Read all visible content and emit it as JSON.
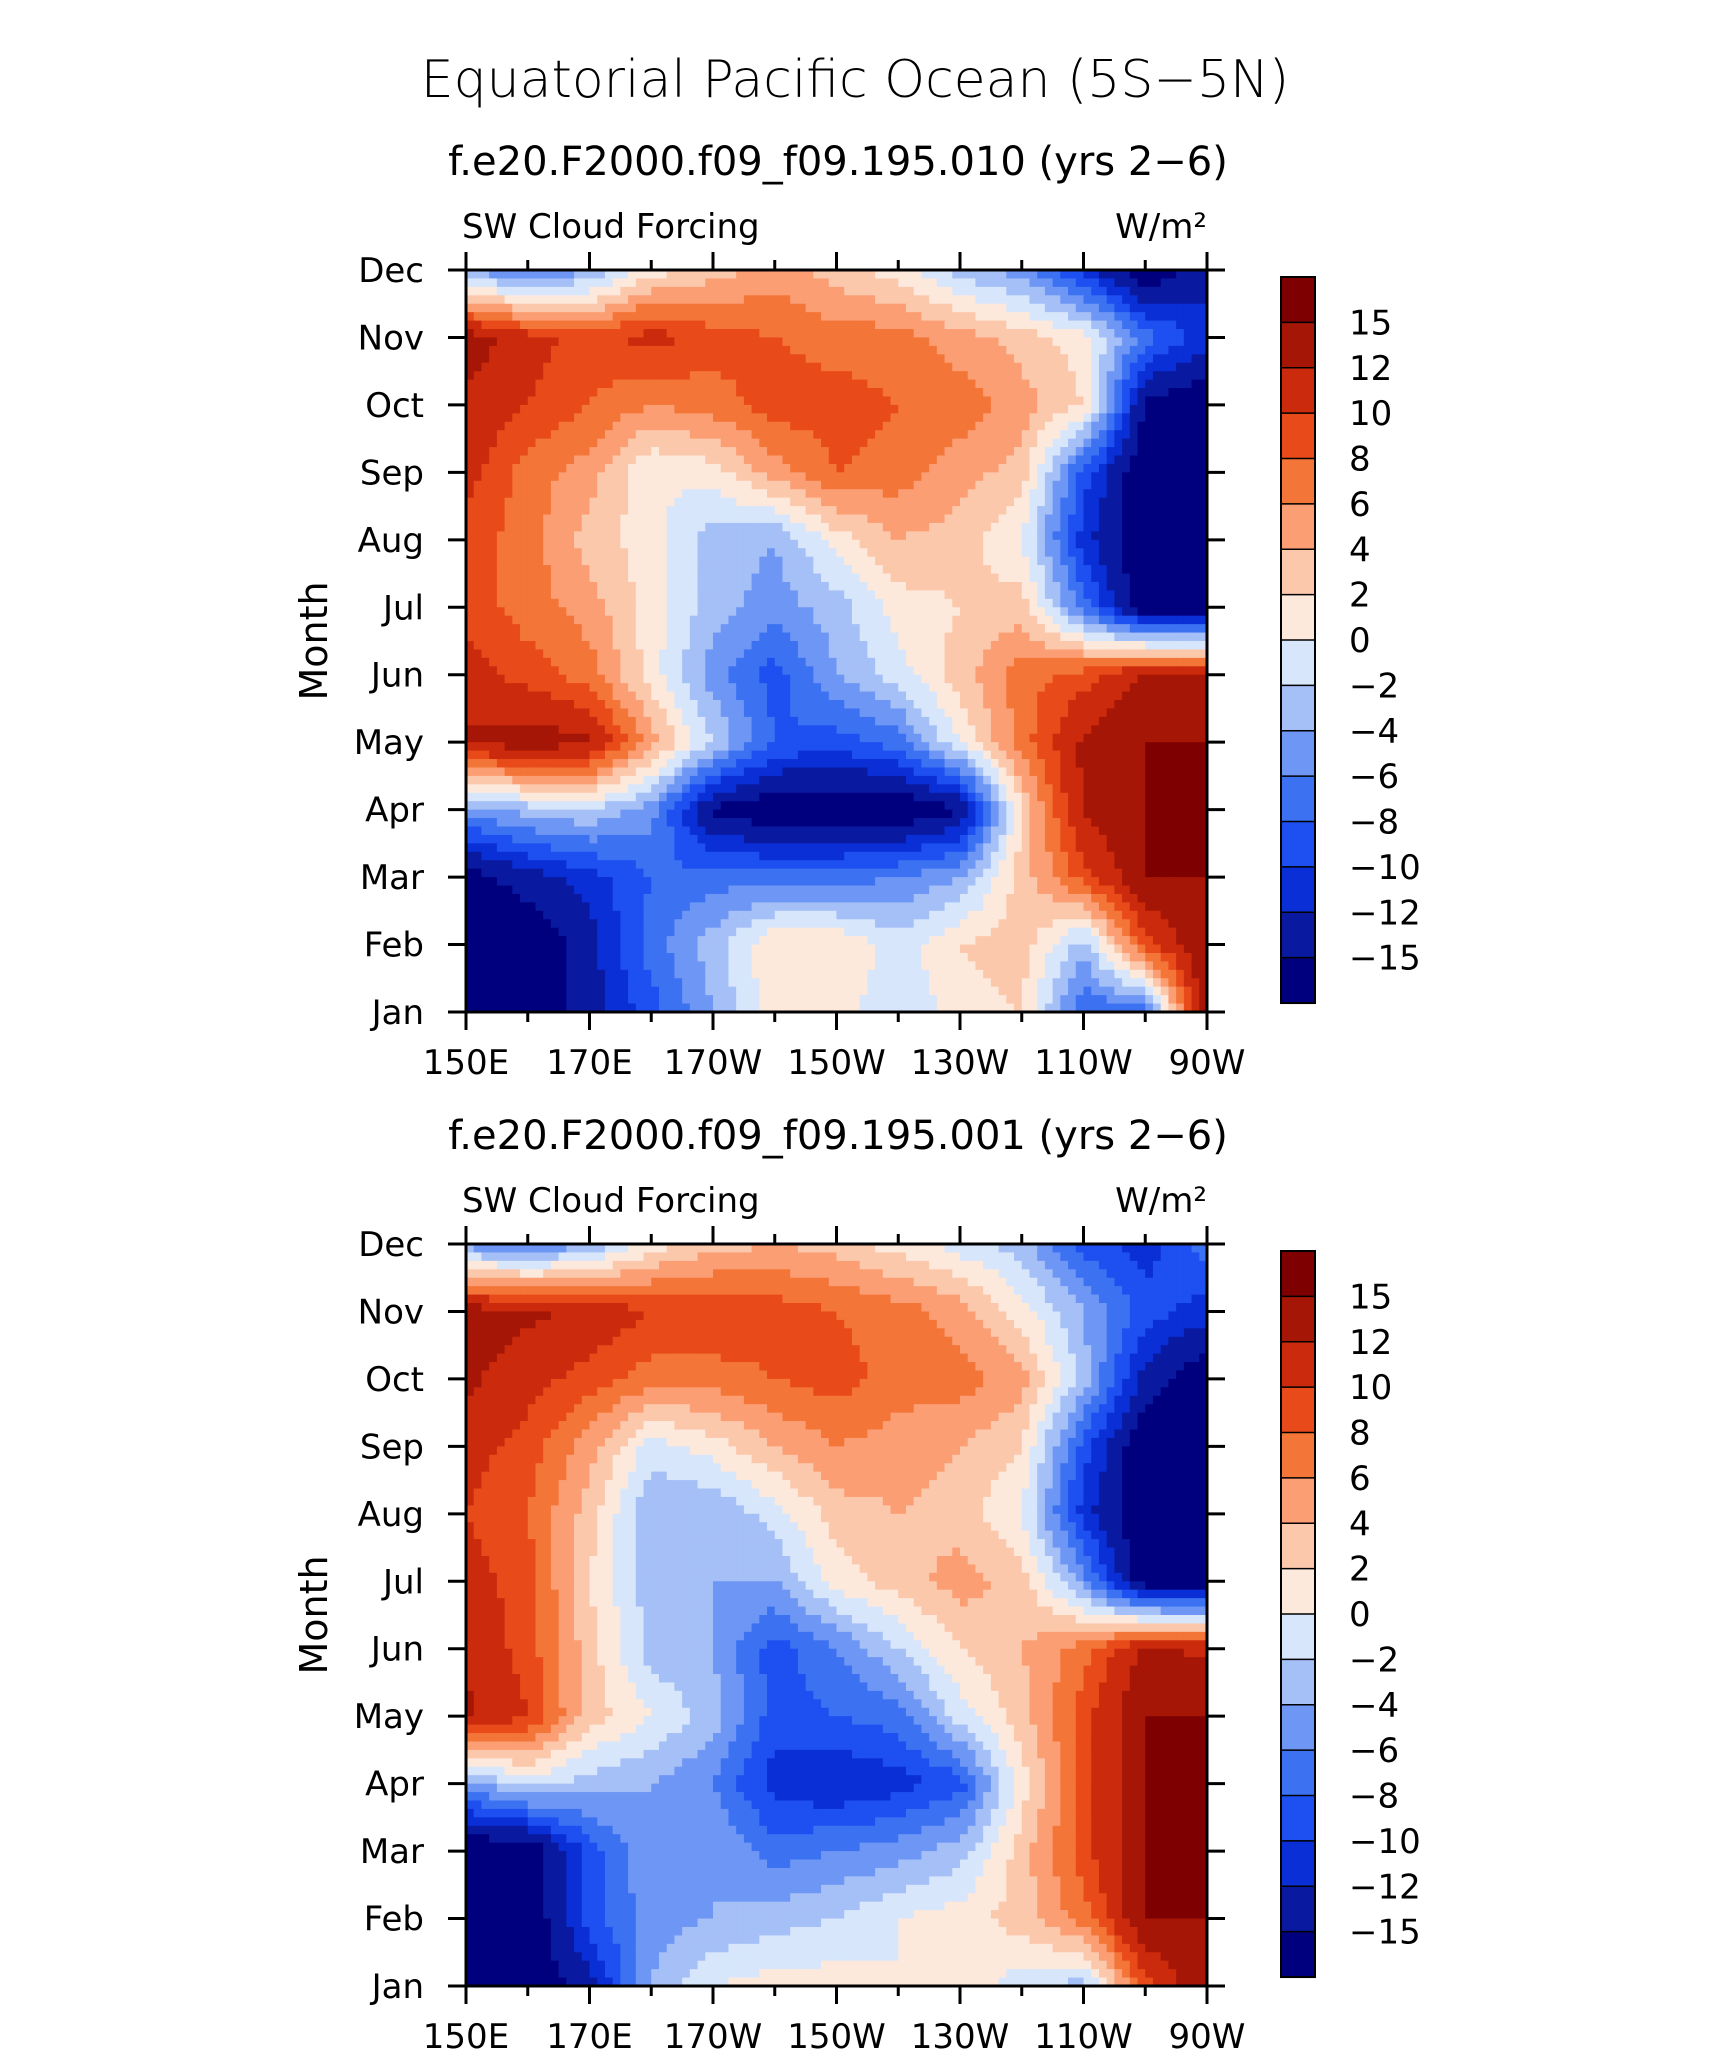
{
  "figure": {
    "title": "Equatorial Pacific Ocean (5S−5N)"
  },
  "colors": {
    "levels": [
      "#00007f",
      "#0a1aa0",
      "#0a2fd6",
      "#1e4ff0",
      "#3c72f2",
      "#6e96f4",
      "#a5bff7",
      "#d7e6fb",
      "#fde9dc",
      "#fcc8ac",
      "#fb9e74",
      "#f47538",
      "#e84a1a",
      "#cc2a0c",
      "#a51607",
      "#7f0000"
    ]
  },
  "chart_data": [
    {
      "type": "heatmap",
      "subtitle": "f.e20.F2000.f09_f09.195.010 (yrs 2−6)",
      "left_label": "SW Cloud Forcing",
      "units": "W/m²",
      "ylabel": "Month",
      "x_ticks": [
        "150E",
        "170E",
        "170W",
        "150W",
        "130W",
        "110W",
        "90W"
      ],
      "x_range": [
        150,
        270
      ],
      "y_ticks": [
        "Jan",
        "Feb",
        "Mar",
        "Apr",
        "May",
        "Jun",
        "Jul",
        "Aug",
        "Sep",
        "Oct",
        "Nov",
        "Dec"
      ],
      "grid": false,
      "colorbar_levels": [
        "15",
        "12",
        "10",
        "8",
        "6",
        "4",
        "2",
        "0",
        "−2",
        "−4",
        "−6",
        "−8",
        "−10",
        "−12",
        "−15"
      ],
      "longitudes": [
        150,
        160,
        170,
        180,
        190,
        200,
        210,
        220,
        230,
        240,
        250,
        260,
        270
      ],
      "values": [
        [
          -16,
          -16,
          -12,
          -8,
          -3,
          2,
          2,
          -1,
          2,
          3,
          -7,
          -6,
          16
        ],
        [
          -16,
          -16,
          -12,
          -6,
          -2,
          3,
          3,
          0,
          3,
          4,
          -2,
          10,
          16
        ],
        [
          -15,
          -12,
          -10,
          -7,
          -6,
          -6,
          -6,
          -5,
          -3,
          4,
          10,
          16,
          16
        ],
        [
          -4,
          -2,
          -1,
          -4,
          -14,
          -16,
          -16,
          -16,
          -14,
          3,
          14,
          16,
          16
        ],
        [
          14,
          15,
          14,
          6,
          -1,
          -7,
          -8,
          -6,
          1,
          8,
          14,
          16,
          16
        ],
        [
          12,
          10,
          8,
          2,
          -4,
          -8,
          -3,
          0,
          4,
          8,
          10,
          14,
          14
        ],
        [
          10,
          8,
          6,
          2,
          -2,
          -4,
          -2,
          2,
          3,
          4,
          -6,
          -16,
          -16
        ],
        [
          10,
          8,
          4,
          2,
          -2,
          -3,
          2,
          5,
          4,
          1,
          -10,
          -16,
          -16
        ],
        [
          12,
          8,
          6,
          1,
          2,
          6,
          9,
          8,
          6,
          4,
          -8,
          -16,
          -16
        ],
        [
          13,
          11,
          9,
          7,
          8,
          10,
          10,
          9,
          8,
          6,
          3,
          -14,
          -16
        ],
        [
          15,
          12,
          10,
          12,
          10,
          9,
          8,
          8,
          6,
          4,
          2,
          -6,
          -10
        ],
        [
          -3,
          -6,
          -3,
          2,
          4,
          6,
          4,
          2,
          -2,
          -4,
          -10,
          -16,
          -12
        ]
      ]
    },
    {
      "type": "heatmap",
      "subtitle": "f.e20.F2000.f09_f09.195.001 (yrs 2−6)",
      "left_label": "SW Cloud Forcing",
      "units": "W/m²",
      "ylabel": "Month",
      "x_ticks": [
        "150E",
        "170E",
        "170W",
        "150W",
        "130W",
        "110W",
        "90W"
      ],
      "x_range": [
        150,
        270
      ],
      "y_ticks": [
        "Jan",
        "Feb",
        "Mar",
        "Apr",
        "May",
        "Jun",
        "Jul",
        "Aug",
        "Sep",
        "Oct",
        "Nov",
        "Dec"
      ],
      "grid": false,
      "colorbar_levels": [
        "15",
        "12",
        "10",
        "8",
        "6",
        "4",
        "2",
        "0",
        "−2",
        "−4",
        "−6",
        "−8",
        "−10",
        "−12",
        "−15"
      ],
      "longitudes": [
        150,
        160,
        170,
        180,
        190,
        200,
        210,
        220,
        230,
        240,
        250,
        260,
        270
      ],
      "values": [
        [
          -16,
          -16,
          -12,
          -3,
          1,
          2,
          2,
          1,
          2,
          0,
          -2,
          10,
          16
        ],
        [
          -16,
          -16,
          -8,
          -4,
          -3,
          -2,
          -1,
          1,
          2,
          4,
          8,
          16,
          16
        ],
        [
          -16,
          -16,
          -8,
          -3,
          -3,
          -6,
          -5,
          -4,
          -2,
          4,
          10,
          16,
          16
        ],
        [
          -4,
          0,
          -2,
          -3,
          -5,
          -10,
          -11,
          -10,
          -8,
          2,
          10,
          16,
          16
        ],
        [
          14,
          11,
          4,
          1,
          -2,
          -8,
          -7,
          -6,
          0,
          4,
          10,
          16,
          16
        ],
        [
          13,
          10,
          4,
          -2,
          -3,
          -8,
          -5,
          -1,
          3,
          5,
          8,
          14,
          13
        ],
        [
          12,
          10,
          3,
          -2,
          -3,
          -3,
          2,
          4,
          6,
          4,
          -4,
          -16,
          -16
        ],
        [
          11,
          9,
          4,
          -3,
          -3,
          0,
          4,
          5,
          4,
          1,
          -10,
          -16,
          -16
        ],
        [
          12,
          10,
          6,
          0,
          2,
          5,
          7,
          6,
          5,
          3,
          -8,
          -16,
          -16
        ],
        [
          14,
          12,
          10,
          8,
          8,
          9,
          10,
          8,
          8,
          6,
          -2,
          -12,
          -16
        ],
        [
          15,
          14,
          13,
          11,
          11,
          10,
          9,
          8,
          6,
          2,
          -3,
          -8,
          -10
        ],
        [
          -4,
          -6,
          -3,
          2,
          4,
          5,
          4,
          2,
          0,
          -2,
          -8,
          -10,
          -6
        ]
      ]
    }
  ]
}
